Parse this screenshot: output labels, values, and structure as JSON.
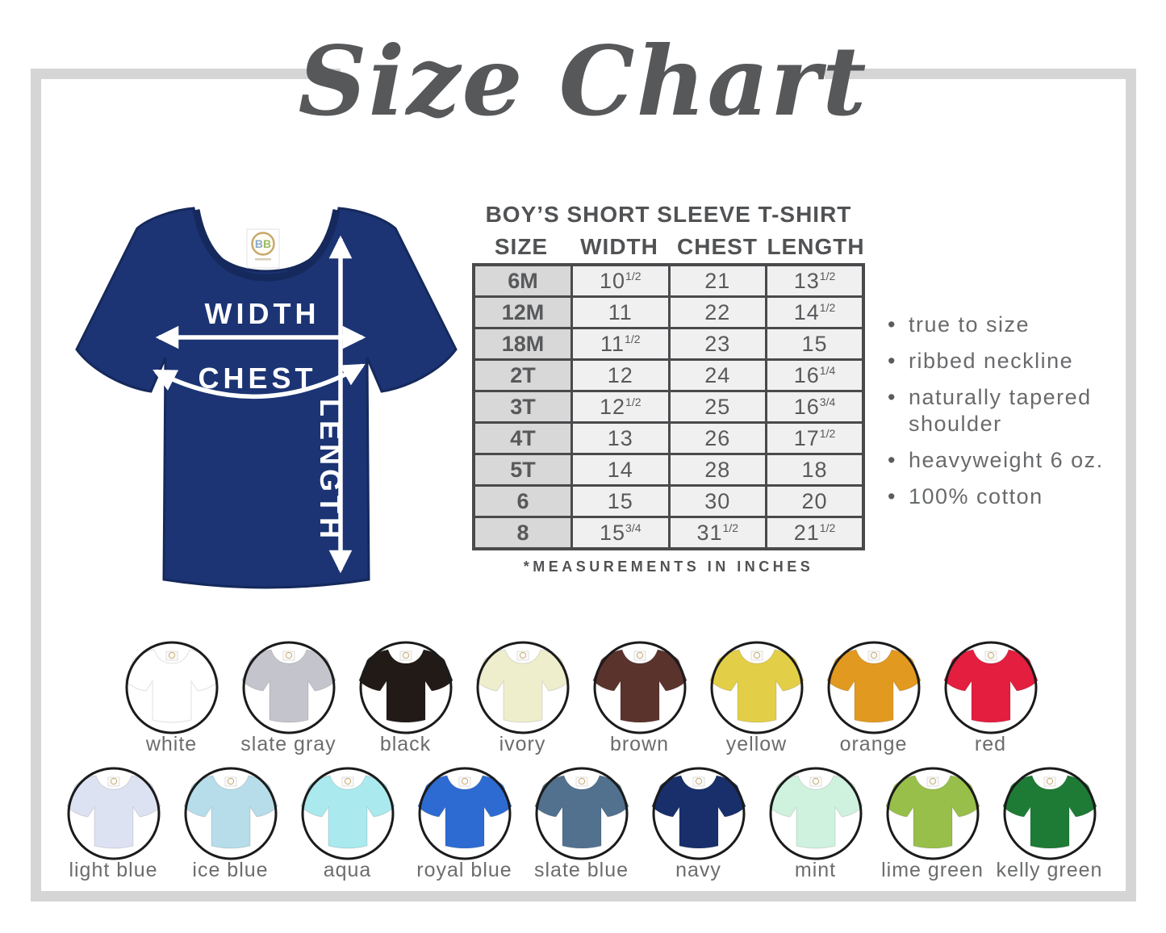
{
  "title": "Size Chart",
  "chart_data": {
    "type": "table",
    "title": "BOY’S SHORT SLEEVE T-SHIRT",
    "columns": [
      "SIZE",
      "WIDTH",
      "CHEST",
      "LENGTH"
    ],
    "rows": [
      [
        "6M",
        "10 1/2",
        "21",
        "13 1/2"
      ],
      [
        "12M",
        "11",
        "22",
        "14 1/2"
      ],
      [
        "18M",
        "11 1/2",
        "23",
        "15"
      ],
      [
        "2T",
        "12",
        "24",
        "16 1/4"
      ],
      [
        "3T",
        "12 1/2",
        "25",
        "16 3/4"
      ],
      [
        "4T",
        "13",
        "26",
        "17 1/2"
      ],
      [
        "5T",
        "14",
        "28",
        "18"
      ],
      [
        "6",
        "15",
        "30",
        "20"
      ],
      [
        "8",
        "15 3/4",
        "31 1/2",
        "21 1/2"
      ]
    ],
    "footnote": "*MEASUREMENTS IN INCHES",
    "units": "inches"
  },
  "diagram": {
    "width_label": "WIDTH",
    "chest_label": "CHEST",
    "length_label": "LENGTH",
    "shirt_color": "#1c3474",
    "tag_text": "BB"
  },
  "features": [
    "true to size",
    "ribbed neckline",
    "naturally tapered shoulder",
    "heavyweight 6 oz.",
    "100% cotton"
  ],
  "color_swatches": {
    "row1": [
      {
        "name": "white",
        "hex": "#ffffff"
      },
      {
        "name": "slate gray",
        "hex": "#c4c4cd"
      },
      {
        "name": "black",
        "hex": "#211a16"
      },
      {
        "name": "ivory",
        "hex": "#eeeecd"
      },
      {
        "name": "brown",
        "hex": "#5b332d"
      },
      {
        "name": "yellow",
        "hex": "#e2cf47"
      },
      {
        "name": "orange",
        "hex": "#e2991f"
      },
      {
        "name": "red",
        "hex": "#e31e3f"
      }
    ],
    "row2": [
      {
        "name": "light blue",
        "hex": "#dde2f3"
      },
      {
        "name": "ice blue",
        "hex": "#b6dde9"
      },
      {
        "name": "aqua",
        "hex": "#aae9ee"
      },
      {
        "name": "royal blue",
        "hex": "#2d6bd2"
      },
      {
        "name": "slate blue",
        "hex": "#52718f"
      },
      {
        "name": "navy",
        "hex": "#182f6c"
      },
      {
        "name": "mint",
        "hex": "#cff2df"
      },
      {
        "name": "lime green",
        "hex": "#98bf49"
      },
      {
        "name": "kelly green",
        "hex": "#1e7b35"
      }
    ]
  },
  "frame_color": "#d5d5d5"
}
